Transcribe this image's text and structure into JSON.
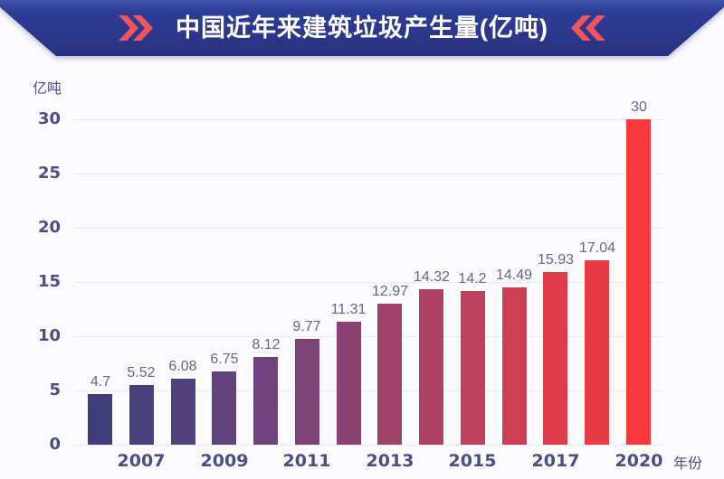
{
  "header": {
    "title": "中国近年来建筑垃圾产生量(亿吨)",
    "title_color": "#FFFFFF",
    "chevron_color": "#F2545F",
    "banner_top_color": "#4053AC",
    "banner_bottom_color": "#283280"
  },
  "chart_data": {
    "type": "bar",
    "title": "中国近年来建筑垃圾产生量(亿吨)",
    "unit_label": "亿吨",
    "xlabel": "年份",
    "ylim": [
      0,
      30
    ],
    "yticks": [
      0,
      5,
      10,
      15,
      20,
      25,
      30
    ],
    "grid": "horizontal",
    "legend_position": "none",
    "background": "#FBFBFE",
    "bars": [
      {
        "tick": "",
        "value": 4.7,
        "label": "4.7",
        "color": "#3E3E7B"
      },
      {
        "tick": "2007",
        "value": 5.52,
        "label": "5.52",
        "color": "#48407C"
      },
      {
        "tick": "",
        "value": 6.08,
        "label": "6.08",
        "color": "#53417D"
      },
      {
        "tick": "2009",
        "value": 6.75,
        "label": "6.75",
        "color": "#5F427E"
      },
      {
        "tick": "",
        "value": 8.12,
        "label": "8.12",
        "color": "#6C437B"
      },
      {
        "tick": "2011",
        "value": 9.77,
        "label": "9.77",
        "color": "#7B4377"
      },
      {
        "tick": "",
        "value": 11.31,
        "label": "11.31",
        "color": "#8B4272"
      },
      {
        "tick": "2013",
        "value": 12.97,
        "label": "12.97",
        "color": "#9C426B"
      },
      {
        "tick": "",
        "value": 14.32,
        "label": "14.32",
        "color": "#AD4163"
      },
      {
        "tick": "2015",
        "value": 14.2,
        "label": "14.2",
        "color": "#BD405C"
      },
      {
        "tick": "",
        "value": 14.49,
        "label": "14.49",
        "color": "#CD3F54"
      },
      {
        "tick": "2017",
        "value": 15.93,
        "label": "15.93",
        "color": "#DC3D4B"
      },
      {
        "tick": "",
        "value": 17.04,
        "label": "17.04",
        "color": "#EA3B44"
      },
      {
        "tick": "2020",
        "value": 30,
        "label": "30",
        "color": "#F9383E"
      }
    ],
    "colors": {
      "gridline": "#EBEBF1",
      "y_tick_label": "#4A4E87",
      "x_tick_label": "#4A4E87",
      "data_label": "#63678E"
    }
  }
}
